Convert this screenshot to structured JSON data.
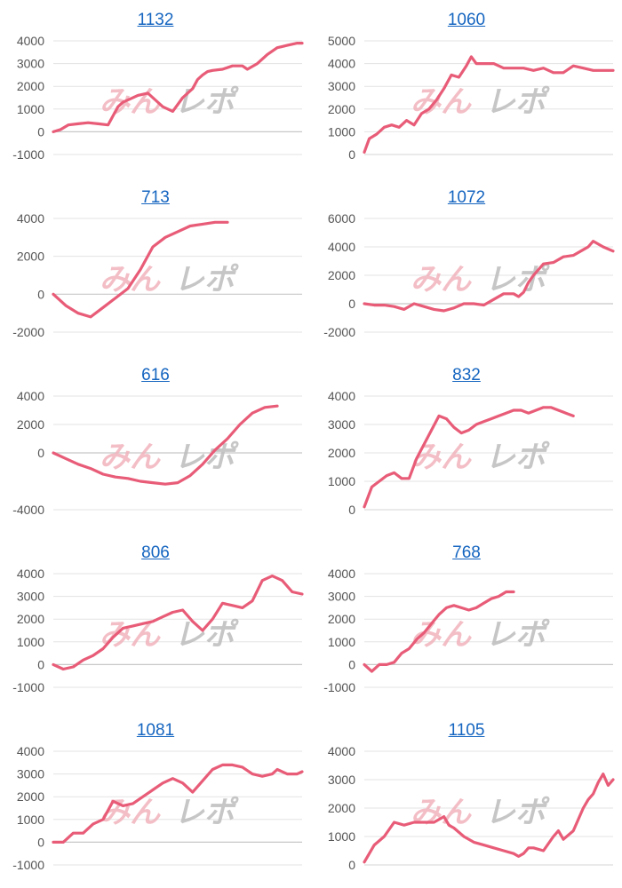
{
  "watermark": {
    "part1": "みん",
    "part2": "レポ"
  },
  "colors": {
    "line": "#e85c78",
    "title": "#1565c0",
    "grid": "#e3e3e3"
  },
  "chart_data": [
    {
      "type": "line",
      "title": "1132",
      "ylim": [
        -1000,
        4000
      ],
      "yticks": [
        4000,
        3000,
        2000,
        1000,
        0,
        -1000
      ],
      "series": [
        {
          "x": [
            0,
            3,
            6,
            10,
            14,
            18,
            22,
            26,
            28,
            30,
            34,
            38,
            40,
            44,
            48,
            52,
            56,
            58,
            60,
            62,
            64,
            68,
            72,
            76,
            78,
            82,
            86,
            90,
            92,
            94,
            96,
            98,
            100
          ],
          "y": [
            0,
            100,
            300,
            350,
            400,
            350,
            300,
            1100,
            1300,
            1400,
            1600,
            1700,
            1500,
            1100,
            900,
            1500,
            1900,
            2300,
            2500,
            2650,
            2700,
            2750,
            2900,
            2900,
            2750,
            3000,
            3400,
            3700,
            3750,
            3800,
            3850,
            3900,
            3900
          ]
        }
      ]
    },
    {
      "type": "line",
      "title": "1060",
      "ylim": [
        0,
        5000
      ],
      "yticks": [
        5000,
        4000,
        3000,
        2000,
        1000,
        0
      ],
      "series": [
        {
          "x": [
            0,
            2,
            5,
            8,
            11,
            14,
            17,
            20,
            23,
            26,
            29,
            32,
            35,
            38,
            41,
            43,
            45,
            48,
            52,
            56,
            60,
            64,
            68,
            72,
            76,
            80,
            84,
            88,
            92,
            96,
            100
          ],
          "y": [
            100,
            700,
            900,
            1200,
            1300,
            1200,
            1500,
            1300,
            1800,
            2000,
            2400,
            2900,
            3500,
            3400,
            3900,
            4300,
            4000,
            4000,
            4000,
            3800,
            3800,
            3800,
            3700,
            3800,
            3600,
            3600,
            3900,
            3800,
            3700,
            3700,
            3700
          ]
        }
      ]
    },
    {
      "type": "line",
      "title": "713",
      "ylim": [
        -2000,
        4000
      ],
      "yticks": [
        4000,
        2000,
        0,
        -2000
      ],
      "series": [
        {
          "x": [
            0,
            5,
            10,
            15,
            20,
            25,
            30,
            35,
            40,
            45,
            50,
            55,
            60,
            65,
            70
          ],
          "y": [
            0,
            -600,
            -1000,
            -1200,
            -700,
            -200,
            300,
            1300,
            2500,
            3000,
            3300,
            3600,
            3700,
            3800,
            3800
          ]
        }
      ]
    },
    {
      "type": "line",
      "title": "1072",
      "ylim": [
        -2000,
        6000
      ],
      "yticks": [
        6000,
        4000,
        2000,
        0,
        -2000
      ],
      "series": [
        {
          "x": [
            0,
            4,
            8,
            12,
            16,
            20,
            24,
            28,
            32,
            36,
            40,
            44,
            48,
            52,
            56,
            60,
            62,
            64,
            66,
            68,
            72,
            76,
            80,
            84,
            88,
            90,
            92,
            96,
            100
          ],
          "y": [
            0,
            -100,
            -100,
            -200,
            -400,
            0,
            -200,
            -400,
            -500,
            -300,
            0,
            0,
            -100,
            300,
            700,
            700,
            500,
            800,
            1500,
            2000,
            2800,
            2900,
            3300,
            3400,
            3800,
            4000,
            4400,
            4000,
            3700
          ]
        }
      ]
    },
    {
      "type": "line",
      "title": "616",
      "ylim": [
        -4000,
        4000
      ],
      "yticks": [
        4000,
        2000,
        0,
        -4000
      ],
      "series": [
        {
          "x": [
            0,
            5,
            10,
            15,
            20,
            25,
            30,
            35,
            40,
            45,
            50,
            55,
            60,
            65,
            70,
            75,
            80,
            85,
            90
          ],
          "y": [
            0,
            -400,
            -800,
            -1100,
            -1500,
            -1700,
            -1800,
            -2000,
            -2100,
            -2200,
            -2100,
            -1600,
            -800,
            200,
            1000,
            2000,
            2800,
            3200,
            3300
          ]
        }
      ]
    },
    {
      "type": "line",
      "title": "832",
      "ylim": [
        0,
        4000
      ],
      "yticks": [
        4000,
        3000,
        2000,
        1000,
        0
      ],
      "series": [
        {
          "x": [
            0,
            3,
            6,
            9,
            12,
            15,
            18,
            21,
            24,
            27,
            30,
            33,
            36,
            39,
            42,
            45,
            48,
            51,
            54,
            57,
            60,
            63,
            66,
            69,
            72,
            75,
            78,
            81,
            84
          ],
          "y": [
            100,
            800,
            1000,
            1200,
            1300,
            1100,
            1100,
            1800,
            2300,
            2800,
            3300,
            3200,
            2900,
            2700,
            2800,
            3000,
            3100,
            3200,
            3300,
            3400,
            3500,
            3500,
            3400,
            3500,
            3600,
            3600,
            3500,
            3400,
            3300
          ]
        }
      ]
    },
    {
      "type": "line",
      "title": "806",
      "ylim": [
        -1000,
        4000
      ],
      "yticks": [
        4000,
        3000,
        2000,
        1000,
        0,
        -1000
      ],
      "series": [
        {
          "x": [
            0,
            4,
            8,
            12,
            16,
            20,
            24,
            28,
            32,
            36,
            40,
            44,
            48,
            52,
            56,
            60,
            64,
            68,
            72,
            76,
            80,
            84,
            88,
            92,
            96,
            100
          ],
          "y": [
            0,
            -200,
            -100,
            200,
            400,
            700,
            1200,
            1600,
            1700,
            1800,
            1900,
            2100,
            2300,
            2400,
            1900,
            1500,
            2000,
            2700,
            2600,
            2500,
            2800,
            3700,
            3900,
            3700,
            3200,
            3100
          ]
        }
      ]
    },
    {
      "type": "line",
      "title": "768",
      "ylim": [
        -1000,
        4000
      ],
      "yticks": [
        4000,
        3000,
        2000,
        1000,
        0,
        -1000
      ],
      "series": [
        {
          "x": [
            0,
            3,
            6,
            9,
            12,
            15,
            18,
            21,
            24,
            27,
            30,
            33,
            36,
            39,
            42,
            45,
            48,
            51,
            54,
            57,
            60
          ],
          "y": [
            0,
            -300,
            0,
            0,
            100,
            500,
            700,
            1100,
            1400,
            1800,
            2200,
            2500,
            2600,
            2500,
            2400,
            2500,
            2700,
            2900,
            3000,
            3200,
            3200
          ]
        }
      ]
    },
    {
      "type": "line",
      "title": "1081",
      "ylim": [
        -1000,
        4000
      ],
      "yticks": [
        4000,
        3000,
        2000,
        1000,
        0,
        -1000
      ],
      "series": [
        {
          "x": [
            0,
            4,
            8,
            12,
            16,
            20,
            24,
            28,
            32,
            36,
            40,
            44,
            48,
            52,
            56,
            60,
            64,
            68,
            72,
            76,
            80,
            84,
            88,
            90,
            94,
            98,
            100
          ],
          "y": [
            0,
            0,
            400,
            400,
            800,
            1000,
            1800,
            1600,
            1700,
            2000,
            2300,
            2600,
            2800,
            2600,
            2200,
            2700,
            3200,
            3400,
            3400,
            3300,
            3000,
            2900,
            3000,
            3200,
            3000,
            3000,
            3100
          ]
        }
      ]
    },
    {
      "type": "line",
      "title": "1105",
      "ylim": [
        0,
        4000
      ],
      "yticks": [
        4000,
        3000,
        2000,
        1000,
        0
      ],
      "series": [
        {
          "x": [
            0,
            4,
            8,
            12,
            16,
            20,
            24,
            28,
            32,
            34,
            36,
            40,
            44,
            48,
            52,
            56,
            60,
            62,
            64,
            66,
            68,
            72,
            76,
            78,
            80,
            84,
            88,
            90,
            92,
            94,
            96,
            98,
            100
          ],
          "y": [
            100,
            700,
            1000,
            1500,
            1400,
            1500,
            1500,
            1500,
            1700,
            1400,
            1300,
            1000,
            800,
            700,
            600,
            500,
            400,
            300,
            400,
            600,
            600,
            500,
            1000,
            1200,
            900,
            1200,
            2000,
            2300,
            2500,
            2900,
            3200,
            2800,
            3000
          ]
        }
      ]
    }
  ]
}
